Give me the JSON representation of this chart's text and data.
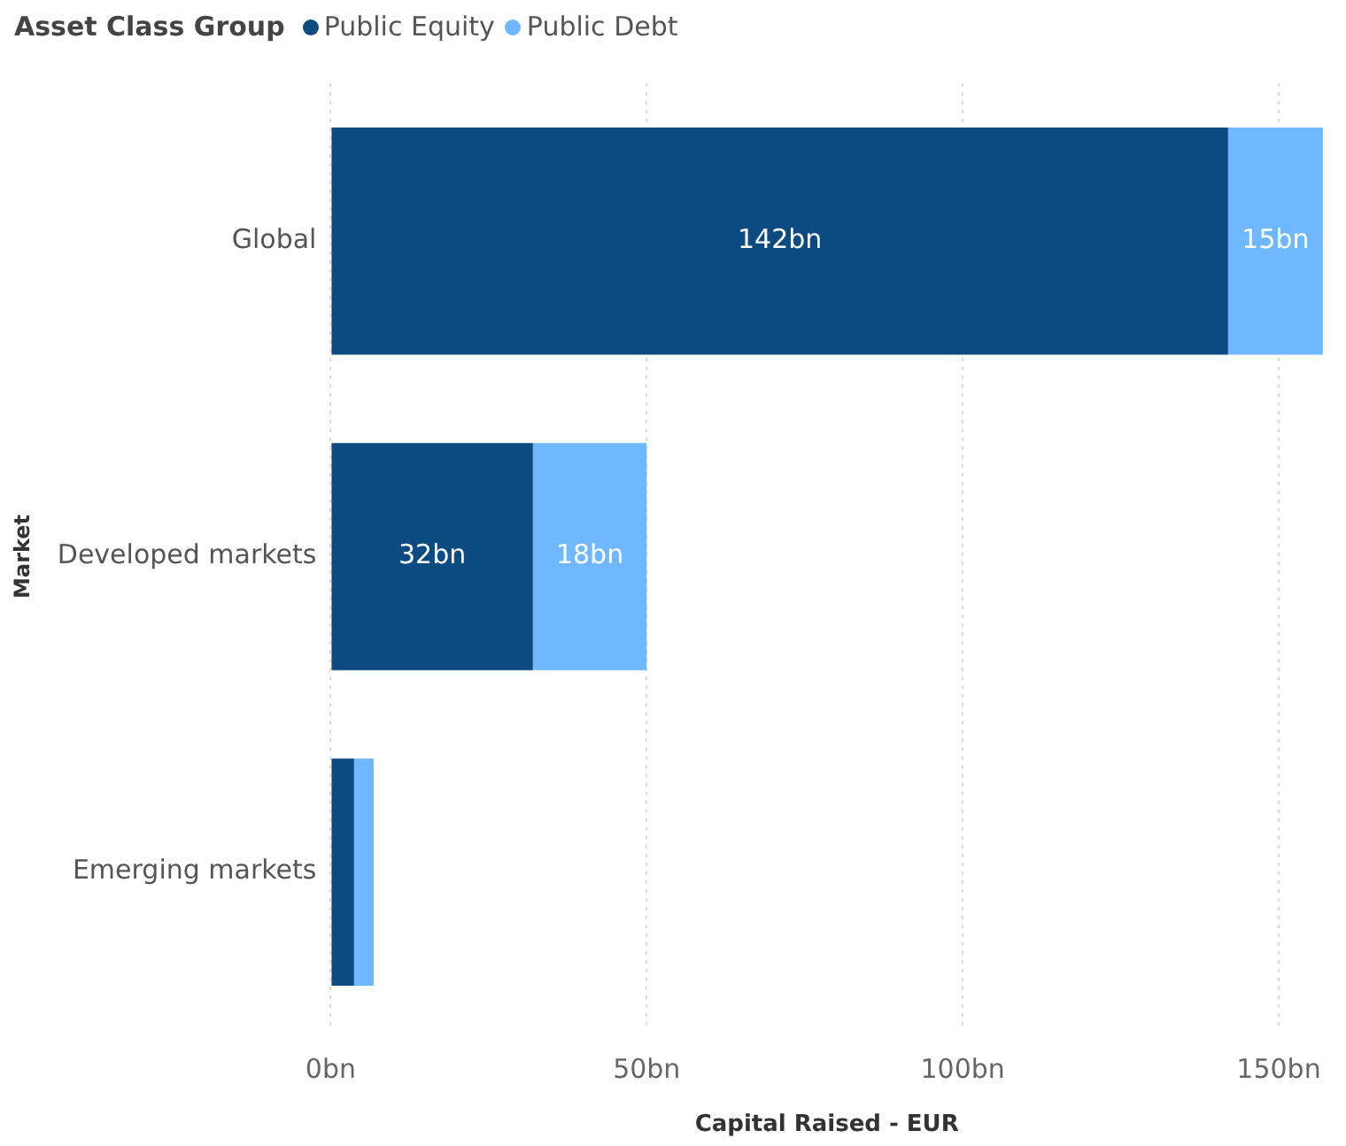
{
  "chart_data": {
    "type": "bar",
    "orientation": "horizontal",
    "stacked": true,
    "legend_title": "Asset Class Group",
    "legend": "top left",
    "xlabel": "Capital Raised - EUR",
    "ylabel": "Market",
    "categories": [
      "Global",
      "Developed markets",
      "Emerging markets"
    ],
    "series": [
      {
        "name": "Public Equity",
        "color": "#0c4a82",
        "values": [
          142,
          32,
          3.7
        ],
        "value_labels": [
          "142bn",
          "32bn",
          null
        ]
      },
      {
        "name": "Public Debt",
        "color": "#6fb8ff",
        "values": [
          15,
          18,
          3.1
        ],
        "value_labels": [
          "15bn",
          "18bn",
          null
        ]
      }
    ],
    "xlim": [
      0,
      157
    ],
    "xticks": [
      {
        "value": 0,
        "label": "0bn"
      },
      {
        "value": 50,
        "label": "50bn"
      },
      {
        "value": 100,
        "label": "100bn"
      },
      {
        "value": 150,
        "label": "150bn"
      }
    ],
    "grid": "x"
  }
}
